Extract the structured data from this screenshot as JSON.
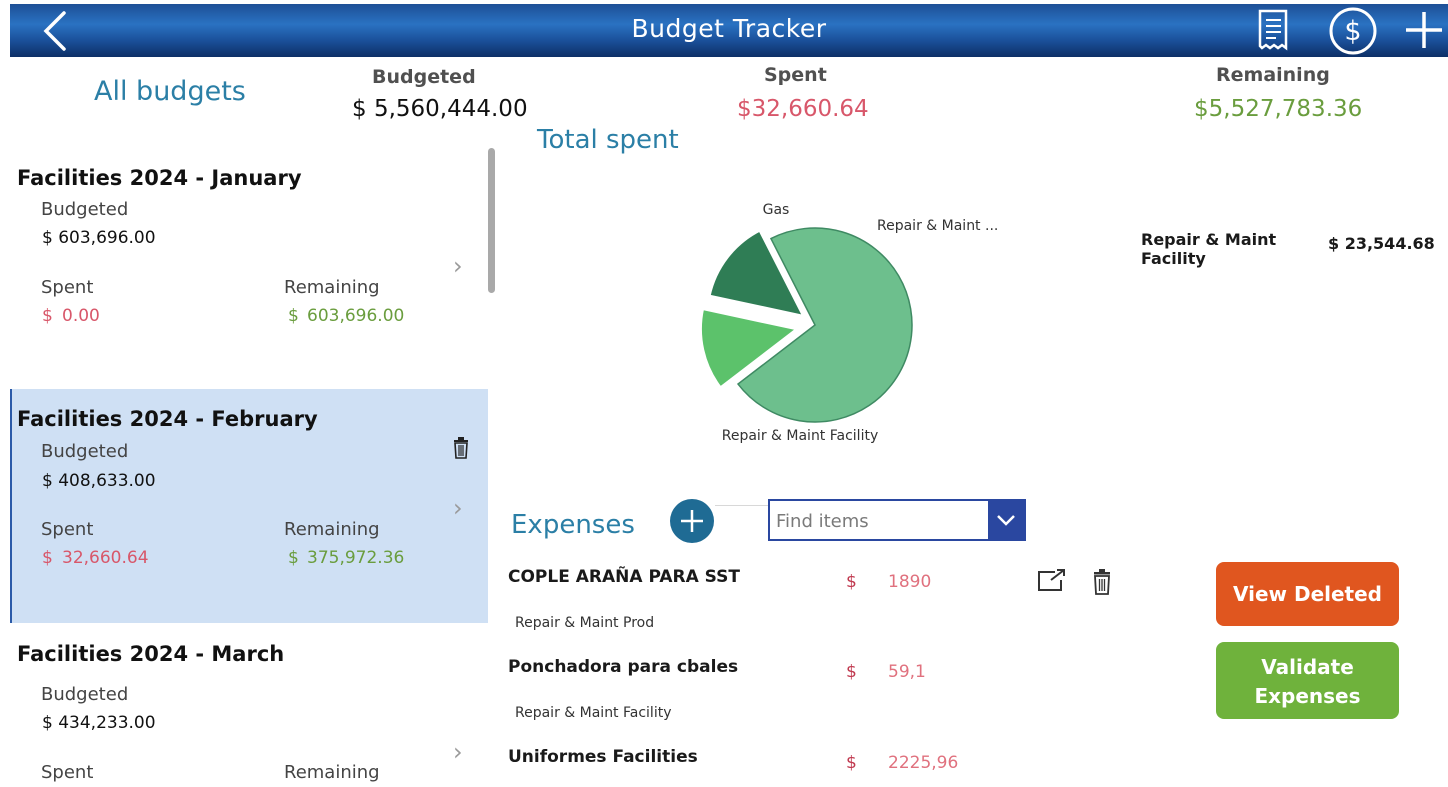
{
  "header": {
    "title": "Budget Tracker",
    "icons": [
      "back-arrow-icon",
      "receipt-icon",
      "dollar-circle-icon",
      "plus-icon"
    ]
  },
  "summary": {
    "heading": "All budgets",
    "budgeted_label": "Budgeted",
    "budgeted_value": "$ 5,560,444.00",
    "spent_label": "Spent",
    "spent_value": "$32,660.64",
    "remaining_label": "Remaining",
    "remaining_value": "$5,527,783.36",
    "colors": {
      "spent": "#d8576a",
      "remaining": "#6a9d3e",
      "heading": "#2b7fa6"
    }
  },
  "budgets": [
    {
      "title": "Facilities 2024 - January",
      "budgeted_label": "Budgeted",
      "budgeted": "$ 603,696.00",
      "spent_label": "Spent",
      "spent_cur": "$",
      "spent": "0.00",
      "remaining_label": "Remaining",
      "remaining_cur": "$",
      "remaining": "603,696.00"
    },
    {
      "title": "Facilities 2024 - February",
      "selected": true,
      "budgeted_label": "Budgeted",
      "budgeted": "$ 408,633.00",
      "spent_label": "Spent",
      "spent_cur": "$",
      "spent": "32,660.64",
      "remaining_label": "Remaining",
      "remaining_cur": "$",
      "remaining": "375,972.36"
    },
    {
      "title": "Facilities 2024 - March",
      "budgeted_label": "Budgeted",
      "budgeted": "$ 434,233.00",
      "spent_label": "Spent",
      "remaining_label": "Remaining"
    }
  ],
  "chart": {
    "heading": "Total spent",
    "legend_label": "Repair & Maint Facility",
    "legend_value": "$ 23,544.68"
  },
  "chart_data": {
    "type": "pie",
    "labels": [
      "Repair & Maint Facility",
      "Gas",
      "Repair & Maint ..."
    ],
    "values": [
      23544.68,
      4500,
      4615.96
    ],
    "colors": [
      "#6dbf8d",
      "#5cc26b",
      "#2f7d55"
    ],
    "exploded": true
  },
  "expenses": {
    "heading": "Expenses",
    "search_placeholder": "Find items",
    "items": [
      {
        "name": "COPLE ARAÑA PARA SST",
        "category": "Repair & Maint Prod",
        "currency": "$",
        "amount": "1890"
      },
      {
        "name": "Ponchadora para cbales",
        "category": "Repair & Maint Facility",
        "currency": "$",
        "amount": "59,1"
      },
      {
        "name": "Uniformes Facilities",
        "category": "",
        "currency": "$",
        "amount": "2225,96"
      }
    ]
  },
  "actions": {
    "view_deleted": "View Deleted",
    "validate_line1": "Validate",
    "validate_line2": "Expenses",
    "colors": {
      "view_deleted": "#e0561f",
      "validate": "#6fb23c"
    }
  }
}
